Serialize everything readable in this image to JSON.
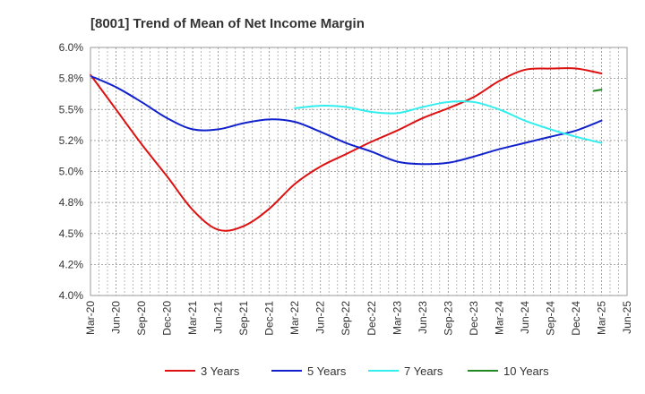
{
  "chart_data": {
    "type": "line",
    "title": "[8001]  Trend of Mean of Net Income Margin",
    "xlabel": "",
    "ylabel": "",
    "x_tick_labels": [
      "Mar-20",
      "Jun-20",
      "Sep-20",
      "Dec-20",
      "Mar-21",
      "Jun-21",
      "Sep-21",
      "Dec-21",
      "Mar-22",
      "Jun-22",
      "Sep-22",
      "Dec-22",
      "Mar-23",
      "Jun-23",
      "Sep-23",
      "Dec-23",
      "Mar-24",
      "Jun-24",
      "Sep-24",
      "Dec-24",
      "Mar-25",
      "Jun-25"
    ],
    "y_ticks": [
      4.0,
      4.25,
      4.5,
      4.75,
      5.0,
      5.25,
      5.5,
      5.75,
      6.0
    ],
    "y_tick_labels": [
      "4.0%",
      "4.2%",
      "4.5%",
      "4.8%",
      "5.0%",
      "5.2%",
      "5.5%",
      "5.8%",
      "6.0%"
    ],
    "ylim": [
      4.0,
      6.0
    ],
    "grid": true,
    "legend_position": "bottom",
    "series": [
      {
        "name": "3 Years",
        "color": "#dd1111",
        "start_index": 0,
        "values": [
          5.78,
          5.5,
          5.22,
          4.96,
          4.69,
          4.53,
          4.56,
          4.7,
          4.9,
          5.04,
          5.14,
          5.24,
          5.33,
          5.43,
          5.51,
          5.6,
          5.73,
          5.82,
          5.83,
          5.83,
          5.79
        ]
      },
      {
        "name": "5 Years",
        "color": "#1122cc",
        "start_index": 0,
        "values": [
          5.77,
          5.68,
          5.56,
          5.43,
          5.34,
          5.34,
          5.39,
          5.42,
          5.4,
          5.32,
          5.23,
          5.16,
          5.08,
          5.06,
          5.07,
          5.12,
          5.18,
          5.23,
          5.28,
          5.33,
          5.41
        ]
      },
      {
        "name": "7 Years",
        "color": "#33eeee",
        "start_index": 8,
        "values": [
          5.51,
          5.53,
          5.52,
          5.48,
          5.47,
          5.52,
          5.56,
          5.56,
          5.5,
          5.41,
          5.34,
          5.28,
          5.23
        ]
      },
      {
        "name": "10 Years",
        "color": "#228822",
        "start_index": 19.7,
        "values": [
          5.65,
          5.66
        ]
      }
    ]
  }
}
